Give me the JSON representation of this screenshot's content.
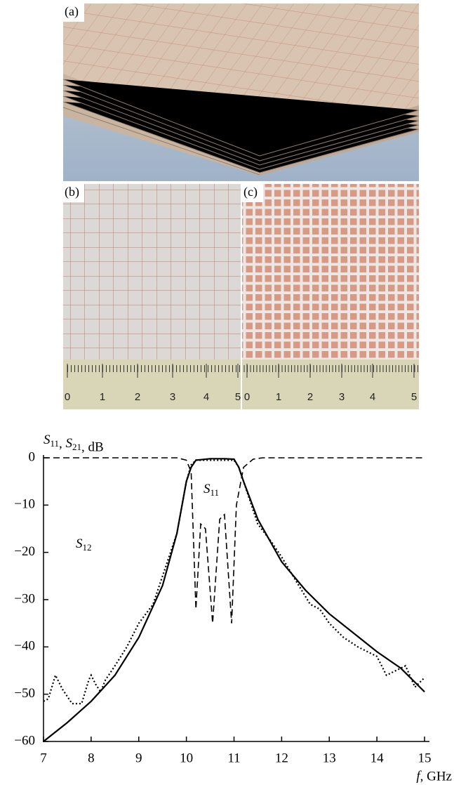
{
  "figure": {
    "panels": [
      {
        "label": "(a)"
      },
      {
        "label": "(b)",
        "ruler": [
          "0",
          "1",
          "2",
          "3",
          "4",
          "5"
        ]
      },
      {
        "label": "(c)",
        "ruler": [
          "0",
          "1",
          "2",
          "3",
          "4",
          "5"
        ]
      }
    ]
  },
  "chart_data": {
    "type": "line",
    "y_label": "S11, S21, dB",
    "x_label": "f, GHz",
    "xlim": [
      7,
      15
    ],
    "xticks": [
      7,
      8,
      9,
      10,
      11,
      12,
      13,
      14,
      15
    ],
    "ylim": [
      -60,
      0
    ],
    "yticks": [
      0,
      {
        "value": -10,
        "label": "−10"
      },
      {
        "value": -20,
        "label": "−20"
      },
      {
        "value": -30,
        "label": "−30"
      },
      {
        "value": -40,
        "label": "−40"
      },
      {
        "value": -50,
        "label": "−50"
      },
      {
        "value": -60,
        "label": "−60"
      }
    ],
    "grid": false,
    "series": [
      {
        "style": "solid",
        "color": "#000000",
        "x": [
          7,
          7.5,
          8,
          8.5,
          9,
          9.5,
          9.8,
          10,
          10.1,
          10.2,
          10.5,
          10.8,
          11,
          11.1,
          11.2,
          11.5,
          12,
          12.5,
          13,
          13.5,
          14,
          14.5,
          15
        ],
        "values": [
          -60,
          -56,
          -51.5,
          -46,
          -38,
          -27,
          -16,
          -5,
          -2,
          -0.5,
          -0.2,
          -0.2,
          -0.3,
          -2,
          -5,
          -13,
          -22,
          -28,
          -33,
          -37,
          -41,
          -44.5,
          -49.5
        ]
      },
      {
        "name": "S11",
        "style": "dashed",
        "color": "#000000",
        "x": [
          7,
          8,
          9,
          9.8,
          10,
          10.1,
          10.2,
          10.3,
          10.4,
          10.55,
          10.7,
          10.8,
          10.95,
          11.05,
          11.2,
          11.4,
          11.6,
          13,
          15
        ],
        "values": [
          0,
          0,
          0,
          0,
          -0.5,
          -3,
          -32,
          -14,
          -15,
          -35,
          -13,
          -12,
          -35,
          -10,
          -2,
          -0.3,
          0,
          0,
          0
        ]
      },
      {
        "name": "S12",
        "style": "dotted",
        "color": "#000000",
        "x": [
          7,
          7.1,
          7.25,
          7.4,
          7.6,
          7.8,
          7.95,
          8,
          8.1,
          8.2,
          8.3,
          8.5,
          8.75,
          9,
          9.3,
          9.5,
          9.8,
          10,
          10.1,
          10.2,
          11,
          11.1,
          11.2,
          11.5,
          11.8,
          12,
          12.3,
          12.6,
          12.8,
          13,
          13.3,
          13.6,
          13.8,
          14,
          14.2,
          14.4,
          14.6,
          14.8,
          15
        ],
        "values": [
          -51.5,
          -51,
          -46,
          -49,
          -52,
          -52,
          -47,
          -46,
          -48,
          -49.5,
          -47,
          -44,
          -40,
          -35,
          -31,
          -25,
          -16,
          -5,
          -1.5,
          -0.5,
          -0.5,
          -2,
          -5,
          -14,
          -18,
          -21,
          -26,
          -31,
          -32,
          -35,
          -38,
          -40,
          -41,
          -42,
          -46,
          -45,
          -44,
          -48.5,
          -46.5
        ]
      }
    ]
  }
}
